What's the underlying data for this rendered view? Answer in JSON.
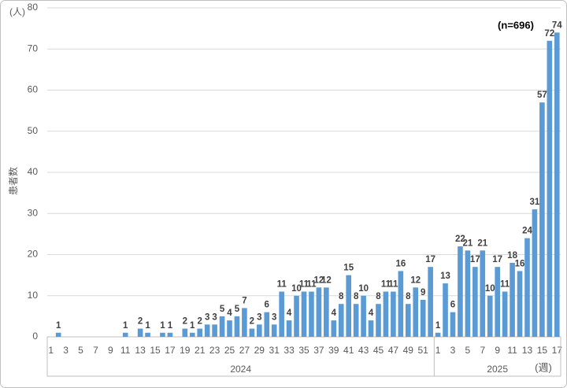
{
  "chart_data": {
    "type": "bar",
    "y_label": "患者数",
    "y_unit": "(人)",
    "x_unit": "(週)",
    "annotation": "(n=696)",
    "groups": [
      {
        "name": "2024",
        "categories": [
          "1",
          null,
          "3",
          null,
          "5",
          null,
          "7",
          null,
          "9",
          null,
          "11",
          null,
          "13",
          null,
          "15",
          null,
          "17",
          null,
          "19",
          null,
          "21",
          null,
          "23",
          null,
          "25",
          null,
          "27",
          null,
          "29",
          null,
          "31",
          null,
          "33",
          null,
          "35",
          null,
          "37",
          null,
          "39",
          null,
          "41",
          null,
          "43",
          null,
          "45",
          null,
          "47",
          null,
          "49",
          null,
          "51",
          null
        ]
      },
      {
        "name": "2025",
        "categories": [
          "1",
          null,
          "3",
          null,
          "5",
          null,
          "7",
          null,
          "9",
          null,
          "11",
          null,
          "13",
          null,
          "15",
          null,
          "17"
        ]
      }
    ],
    "values": [
      0,
      1,
      0,
      0,
      0,
      0,
      0,
      0,
      0,
      0,
      1,
      0,
      2,
      1,
      0,
      1,
      1,
      0,
      2,
      1,
      2,
      3,
      3,
      5,
      4,
      5,
      7,
      2,
      3,
      6,
      3,
      11,
      4,
      10,
      11,
      11,
      12,
      12,
      4,
      8,
      15,
      8,
      10,
      4,
      8,
      11,
      11,
      16,
      8,
      12,
      9,
      17,
      1,
      13,
      6,
      22,
      21,
      17,
      21,
      10,
      17,
      11,
      18,
      16,
      24,
      31,
      57,
      72,
      74
    ],
    "color": "#5b9bd5",
    "ylim": [
      0,
      80
    ],
    "yticks": [
      0,
      10,
      20,
      30,
      40,
      50,
      60,
      70,
      80
    ],
    "grid": true
  }
}
